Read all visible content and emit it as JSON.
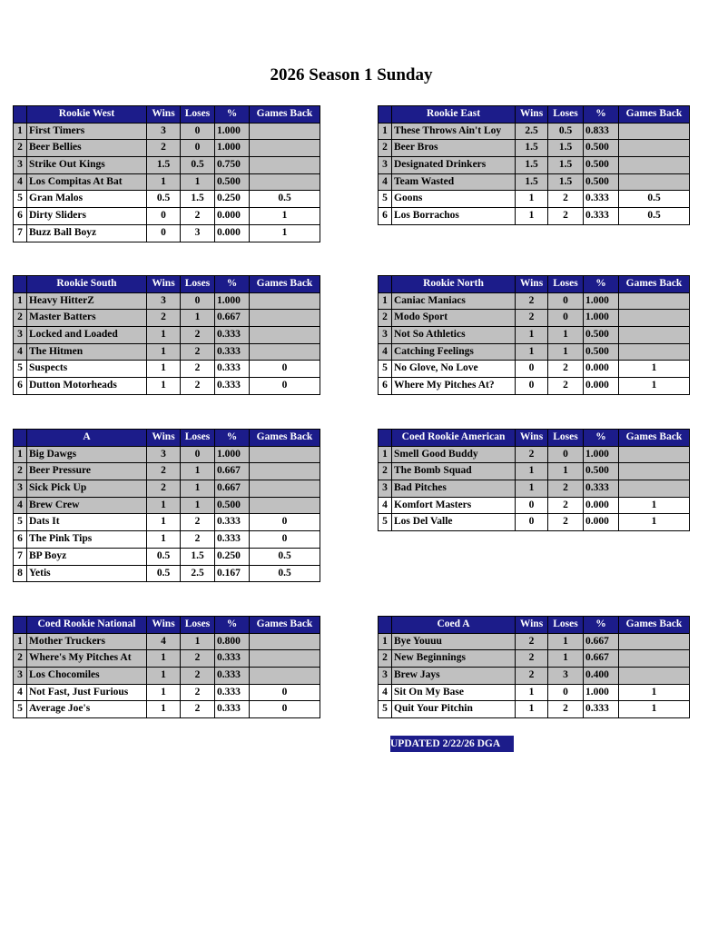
{
  "title": "2026 Season 1 Sunday",
  "columns": [
    "Wins",
    "Loses",
    "%",
    "Games Back"
  ],
  "divisions": [
    {
      "name": "Rookie West",
      "rows": [
        [
          1,
          "First Timers",
          3,
          0,
          "1.000",
          null
        ],
        [
          2,
          "Beer Bellies",
          2,
          0,
          "1.000",
          null
        ],
        [
          3,
          "Strike Out Kings",
          1.5,
          0.5,
          "0.750",
          null
        ],
        [
          4,
          "Los Compitas At Bat",
          1,
          1,
          "0.500",
          null
        ],
        [
          5,
          "Gran Malos",
          0.5,
          1.5,
          "0.250",
          0.5
        ],
        [
          6,
          "Dirty Sliders",
          0,
          2,
          "0.000",
          1
        ],
        [
          7,
          "Buzz Ball Boyz",
          0,
          3,
          "0.000",
          1
        ]
      ]
    },
    {
      "name": "Rookie East",
      "rows": [
        [
          1,
          "These Throws Ain't Loy",
          2.5,
          0.5,
          "0.833",
          null
        ],
        [
          2,
          "Beer Bros",
          1.5,
          1.5,
          "0.500",
          null
        ],
        [
          3,
          "Designated Drinkers",
          1.5,
          1.5,
          "0.500",
          null
        ],
        [
          4,
          "Team Wasted",
          1.5,
          1.5,
          "0.500",
          null
        ],
        [
          5,
          "Goons",
          1,
          2,
          "0.333",
          0.5
        ],
        [
          6,
          "Los Borrachos",
          1,
          2,
          "0.333",
          0.5
        ]
      ]
    },
    {
      "name": "Rookie South",
      "rows": [
        [
          1,
          "Heavy HitterZ",
          3,
          0,
          "1.000",
          null
        ],
        [
          2,
          "Master Batters",
          2,
          1,
          "0.667",
          null
        ],
        [
          3,
          "Locked and Loaded",
          1,
          2,
          "0.333",
          null
        ],
        [
          4,
          "The Hitmen",
          1,
          2,
          "0.333",
          null
        ],
        [
          5,
          "Suspects",
          1,
          2,
          "0.333",
          0
        ],
        [
          6,
          "Dutton Motorheads",
          1,
          2,
          "0.333",
          0
        ]
      ]
    },
    {
      "name": "Rookie North",
      "rows": [
        [
          1,
          "Caniac Maniacs",
          2,
          0,
          "1.000",
          null
        ],
        [
          2,
          "Modo Sport",
          2,
          0,
          "1.000",
          null
        ],
        [
          3,
          "Not So Athletics",
          1,
          1,
          "0.500",
          null
        ],
        [
          4,
          "Catching Feelings",
          1,
          1,
          "0.500",
          null
        ],
        [
          5,
          "No Glove, No Love",
          0,
          2,
          "0.000",
          1
        ],
        [
          6,
          "Where My Pitches At?",
          0,
          2,
          "0.000",
          1
        ]
      ]
    },
    {
      "name": "A",
      "rows": [
        [
          1,
          "Big Dawgs",
          3,
          0,
          "1.000",
          null
        ],
        [
          2,
          "Beer Pressure",
          2,
          1,
          "0.667",
          null
        ],
        [
          3,
          "Sick Pick Up",
          2,
          1,
          "0.667",
          null
        ],
        [
          4,
          "Brew Crew",
          1,
          1,
          "0.500",
          null
        ],
        [
          5,
          "Dats It",
          1,
          2,
          "0.333",
          0
        ],
        [
          6,
          "The Pink Tips",
          1,
          2,
          "0.333",
          0
        ],
        [
          7,
          "BP Boyz",
          0.5,
          1.5,
          "0.250",
          0.5
        ],
        [
          8,
          "Yetis",
          0.5,
          2.5,
          "0.167",
          0.5
        ]
      ]
    },
    {
      "name": "Coed Rookie American",
      "rows": [
        [
          1,
          "Smell Good Buddy",
          2,
          0,
          "1.000",
          null
        ],
        [
          2,
          "The Bomb Squad",
          1,
          1,
          "0.500",
          null
        ],
        [
          3,
          "Bad Pitches",
          1,
          2,
          "0.333",
          null
        ],
        [
          4,
          "Komfort Masters",
          0,
          2,
          "0.000",
          1
        ],
        [
          5,
          "Los Del Valle",
          0,
          2,
          "0.000",
          1
        ]
      ]
    },
    {
      "name": "Coed Rookie National",
      "rows": [
        [
          1,
          "Mother Truckers",
          4,
          1,
          "0.800",
          null
        ],
        [
          2,
          "Where's My Pitches At",
          1,
          2,
          "0.333",
          null
        ],
        [
          3,
          "Los Chocomiles",
          1,
          2,
          "0.333",
          null
        ],
        [
          4,
          "Not Fast, Just Furious",
          1,
          2,
          "0.333",
          0
        ],
        [
          5,
          "Average Joe's",
          1,
          2,
          "0.333",
          0
        ]
      ]
    },
    {
      "name": "Coed A",
      "rows": [
        [
          1,
          "Bye Youuu",
          2,
          1,
          "0.667",
          null
        ],
        [
          2,
          "New Beginnings",
          2,
          1,
          "0.667",
          null
        ],
        [
          3,
          "Brew Jays",
          2,
          3,
          "0.400",
          null
        ],
        [
          4,
          "Sit On My Base",
          1,
          0,
          "1.000",
          1
        ],
        [
          5,
          "Quit Your Pitchin",
          1,
          2,
          "0.333",
          1
        ]
      ]
    }
  ],
  "updated": "UPDATED 2/22/26 DGA"
}
